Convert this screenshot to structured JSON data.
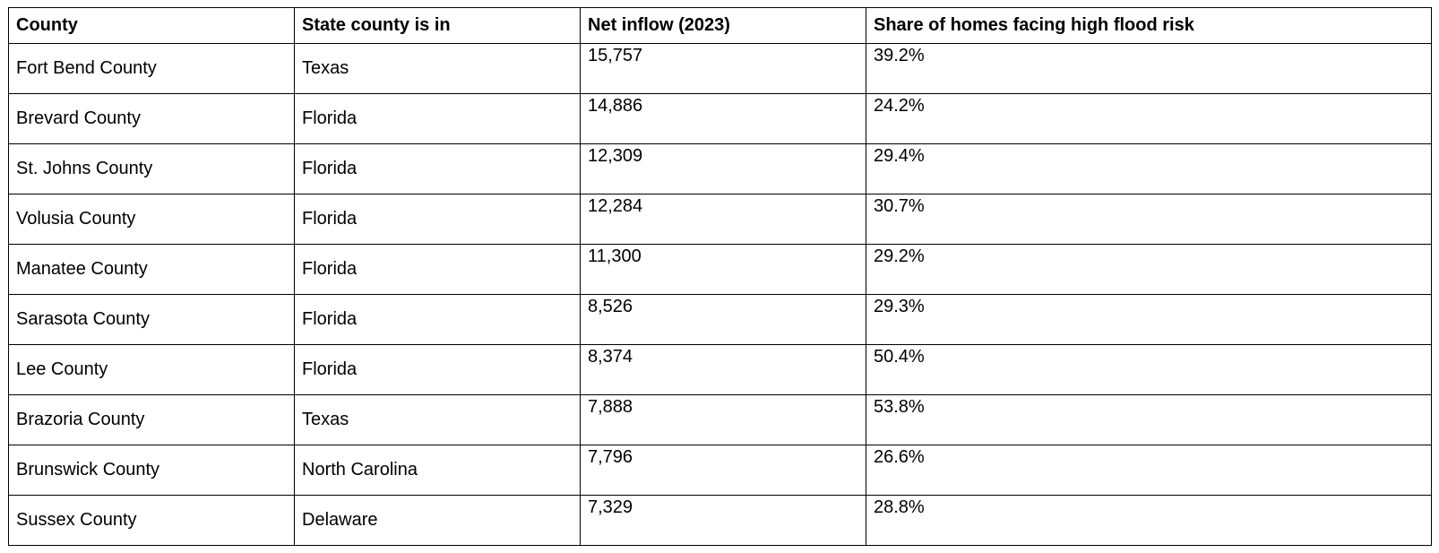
{
  "table": {
    "headers": [
      "County",
      "State county is in",
      "Net inflow (2023)",
      "Share of homes facing high flood risk"
    ],
    "rows": [
      {
        "county": "Fort Bend County",
        "state": "Texas",
        "net_inflow": "15,757",
        "flood_share": "39.2%"
      },
      {
        "county": "Brevard County",
        "state": "Florida",
        "net_inflow": "14,886",
        "flood_share": "24.2%"
      },
      {
        "county": "St. Johns County",
        "state": "Florida",
        "net_inflow": "12,309",
        "flood_share": "29.4%"
      },
      {
        "county": "Volusia County",
        "state": "Florida",
        "net_inflow": "12,284",
        "flood_share": "30.7%"
      },
      {
        "county": "Manatee County",
        "state": "Florida",
        "net_inflow": "11,300",
        "flood_share": "29.2%"
      },
      {
        "county": "Sarasota County",
        "state": "Florida",
        "net_inflow": "8,526",
        "flood_share": "29.3%"
      },
      {
        "county": "Lee County",
        "state": "Florida",
        "net_inflow": "8,374",
        "flood_share": "50.4%"
      },
      {
        "county": "Brazoria County",
        "state": "Texas",
        "net_inflow": "7,888",
        "flood_share": "53.8%"
      },
      {
        "county": "Brunswick County",
        "state": "North Carolina",
        "net_inflow": "7,796",
        "flood_share": "26.6%"
      },
      {
        "county": "Sussex County",
        "state": "Delaware",
        "net_inflow": "7,329",
        "flood_share": "28.8%"
      }
    ]
  }
}
